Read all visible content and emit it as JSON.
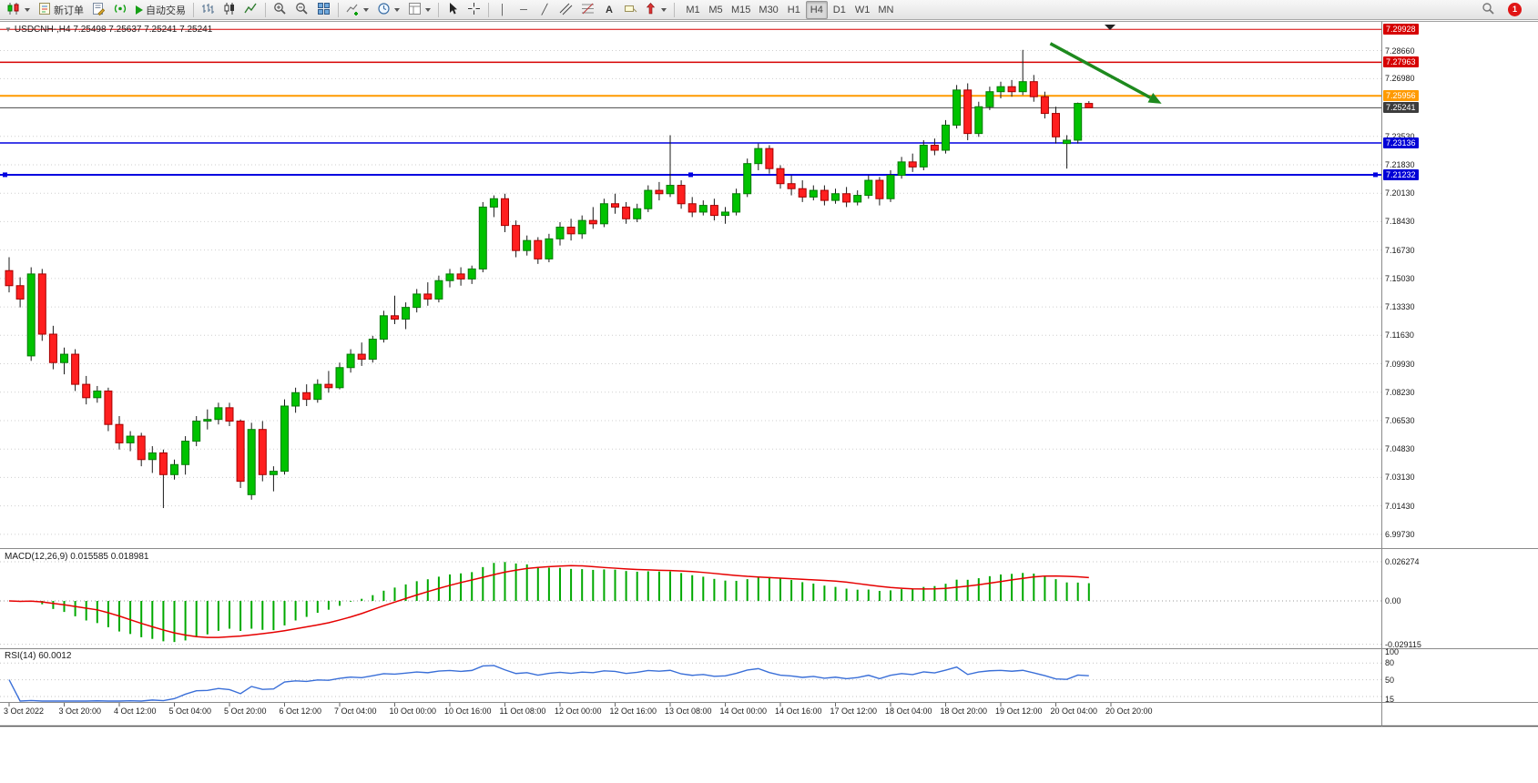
{
  "toolbar": {
    "new_order": "新订单",
    "autotrading": "自动交易",
    "text_tool": "A",
    "timeframes": [
      "M1",
      "M5",
      "M15",
      "M30",
      "H1",
      "H4",
      "D1",
      "W1",
      "MN"
    ],
    "active_timeframe": "H4",
    "notification_count": "1"
  },
  "icons": {
    "one_click_toggle": "▼",
    "vline": "│",
    "hline": "─",
    "trendline": "╱"
  },
  "chart": {
    "title": "USDCNH-,H4  7.25498 7.25637 7.25241 7.25241"
  },
  "chart_data": {
    "type": "candlestick",
    "symbol": "USDCNH-",
    "timeframe": "H4",
    "last_ohlc": {
      "open": "7.25498",
      "high": "7.25637",
      "low": "7.25241",
      "close": "7.25241"
    },
    "price_range": {
      "axis_top": 7.3005,
      "axis_bottom": 6.9945
    },
    "colors": {
      "up": "#00c200",
      "up_border": "#067a06",
      "down": "#ff1f1f",
      "down_border": "#a50000",
      "wick": "#1a1a1a",
      "grid": "#cfcfcf",
      "macd_hist": "#00a900",
      "macd_signal": "#e60000",
      "rsi_line": "#3a6fd8"
    },
    "price_axis": [
      {
        "text": "7.29928",
        "v": 7.29928,
        "bg": "#d60000"
      },
      {
        "text": "7.28660",
        "v": 7.2866
      },
      {
        "text": "7.27963",
        "v": 7.27963,
        "bg": "#d60000"
      },
      {
        "text": "7.26980",
        "v": 7.2698
      },
      {
        "text": "7.25956",
        "v": 7.25956,
        "bg": "#ff9a00"
      },
      {
        "text": "7.25241",
        "v": 7.25241,
        "bg": "#3c3c3c"
      },
      {
        "text": "7.23530",
        "v": 7.2353
      },
      {
        "text": "7.23136",
        "v": 7.23136,
        "bg": "#0000d6"
      },
      {
        "text": "7.21830",
        "v": 7.2183
      },
      {
        "text": "7.21232",
        "v": 7.21232,
        "bg": "#0000d6"
      },
      {
        "text": "7.20130",
        "v": 7.2013
      },
      {
        "text": "7.18430",
        "v": 7.1843
      },
      {
        "text": "7.16730",
        "v": 7.1673
      },
      {
        "text": "7.15030",
        "v": 7.1503
      },
      {
        "text": "7.13330",
        "v": 7.1333
      },
      {
        "text": "7.11630",
        "v": 7.1163
      },
      {
        "text": "7.09930",
        "v": 7.0993
      },
      {
        "text": "7.08230",
        "v": 7.0823
      },
      {
        "text": "7.06530",
        "v": 7.0653
      },
      {
        "text": "7.04830",
        "v": 7.0483
      },
      {
        "text": "7.03130",
        "v": 7.0313
      },
      {
        "text": "7.01430",
        "v": 7.0143
      },
      {
        "text": "6.99730",
        "v": 6.9973
      }
    ],
    "hlines": [
      {
        "price": 7.29928,
        "color": "#d60000",
        "w": 1
      },
      {
        "price": 7.27963,
        "color": "#d60000",
        "w": 1.5
      },
      {
        "price": 7.25956,
        "color": "#ff9a00",
        "w": 2
      },
      {
        "price": 7.25241,
        "color": "#4a4a4a",
        "w": 1
      },
      {
        "price": 7.23136,
        "color": "#0000e0",
        "w": 1.5
      },
      {
        "price": 7.21232,
        "color": "#0000e0",
        "w": 2,
        "selected": true
      }
    ],
    "trend_arrow": {
      "i1": 94.5,
      "p1": 7.2908,
      "i2": 104.6,
      "p2": 7.2548,
      "color": "#1e8a1e"
    },
    "candles": [
      [
        7.155,
        7.163,
        7.142,
        7.146
      ],
      [
        7.146,
        7.151,
        7.133,
        7.138
      ],
      [
        7.104,
        7.157,
        7.101,
        7.153
      ],
      [
        7.153,
        7.156,
        7.113,
        7.117
      ],
      [
        7.117,
        7.122,
        7.096,
        7.1
      ],
      [
        7.1,
        7.109,
        7.093,
        7.105
      ],
      [
        7.105,
        7.108,
        7.083,
        7.087
      ],
      [
        7.087,
        7.092,
        7.075,
        7.079
      ],
      [
        7.079,
        7.086,
        7.076,
        7.083
      ],
      [
        7.083,
        7.085,
        7.059,
        7.063
      ],
      [
        7.063,
        7.068,
        7.048,
        7.052
      ],
      [
        7.052,
        7.059,
        7.047,
        7.056
      ],
      [
        7.056,
        7.058,
        7.038,
        7.042
      ],
      [
        7.042,
        7.05,
        7.034,
        7.046
      ],
      [
        7.046,
        7.048,
        7.013,
        7.033
      ],
      [
        7.033,
        7.042,
        7.03,
        7.039
      ],
      [
        7.039,
        7.056,
        7.033,
        7.053
      ],
      [
        7.053,
        7.068,
        7.05,
        7.065
      ],
      [
        7.065,
        7.072,
        7.06,
        7.066
      ],
      [
        7.066,
        7.076,
        7.063,
        7.073
      ],
      [
        7.073,
        7.076,
        7.062,
        7.065
      ],
      [
        7.065,
        7.066,
        7.025,
        7.029
      ],
      [
        7.021,
        7.064,
        7.018,
        7.06
      ],
      [
        7.06,
        7.065,
        7.029,
        7.033
      ],
      [
        7.033,
        7.038,
        7.023,
        7.035
      ],
      [
        7.035,
        7.078,
        7.033,
        7.074
      ],
      [
        7.074,
        7.085,
        7.07,
        7.082
      ],
      [
        7.082,
        7.087,
        7.074,
        7.078
      ],
      [
        7.078,
        7.09,
        7.076,
        7.087
      ],
      [
        7.087,
        7.095,
        7.082,
        7.085
      ],
      [
        7.085,
        7.1,
        7.084,
        7.097
      ],
      [
        7.097,
        7.108,
        7.094,
        7.105
      ],
      [
        7.105,
        7.112,
        7.098,
        7.102
      ],
      [
        7.102,
        7.116,
        7.1,
        7.114
      ],
      [
        7.114,
        7.131,
        7.112,
        7.128
      ],
      [
        7.128,
        7.14,
        7.123,
        7.126
      ],
      [
        7.126,
        7.136,
        7.12,
        7.133
      ],
      [
        7.133,
        7.144,
        7.13,
        7.141
      ],
      [
        7.141,
        7.148,
        7.134,
        7.138
      ],
      [
        7.138,
        7.152,
        7.136,
        7.149
      ],
      [
        7.149,
        7.156,
        7.145,
        7.153
      ],
      [
        7.153,
        7.157,
        7.146,
        7.15
      ],
      [
        7.15,
        7.158,
        7.147,
        7.156
      ],
      [
        7.156,
        7.196,
        7.154,
        7.193
      ],
      [
        7.193,
        7.2,
        7.187,
        7.198
      ],
      [
        7.198,
        7.201,
        7.178,
        7.182
      ],
      [
        7.182,
        7.185,
        7.163,
        7.167
      ],
      [
        7.167,
        7.176,
        7.164,
        7.173
      ],
      [
        7.173,
        7.175,
        7.159,
        7.162
      ],
      [
        7.162,
        7.177,
        7.16,
        7.174
      ],
      [
        7.174,
        7.184,
        7.17,
        7.181
      ],
      [
        7.181,
        7.186,
        7.173,
        7.177
      ],
      [
        7.177,
        7.188,
        7.174,
        7.185
      ],
      [
        7.185,
        7.193,
        7.18,
        7.183
      ],
      [
        7.183,
        7.198,
        7.181,
        7.195
      ],
      [
        7.195,
        7.201,
        7.189,
        7.193
      ],
      [
        7.193,
        7.196,
        7.183,
        7.186
      ],
      [
        7.186,
        7.195,
        7.184,
        7.192
      ],
      [
        7.192,
        7.206,
        7.19,
        7.203
      ],
      [
        7.203,
        7.208,
        7.197,
        7.201
      ],
      [
        7.201,
        7.236,
        7.199,
        7.206
      ],
      [
        7.206,
        7.209,
        7.192,
        7.195
      ],
      [
        7.195,
        7.199,
        7.187,
        7.19
      ],
      [
        7.19,
        7.197,
        7.188,
        7.194
      ],
      [
        7.194,
        7.198,
        7.185,
        7.188
      ],
      [
        7.188,
        7.193,
        7.183,
        7.19
      ],
      [
        7.19,
        7.204,
        7.188,
        7.201
      ],
      [
        7.201,
        7.222,
        7.199,
        7.219
      ],
      [
        7.219,
        7.231,
        7.215,
        7.228
      ],
      [
        7.228,
        7.23,
        7.213,
        7.216
      ],
      [
        7.216,
        7.218,
        7.204,
        7.207
      ],
      [
        7.207,
        7.212,
        7.2,
        7.204
      ],
      [
        7.204,
        7.209,
        7.196,
        7.199
      ],
      [
        7.199,
        7.206,
        7.197,
        7.203
      ],
      [
        7.203,
        7.206,
        7.194,
        7.197
      ],
      [
        7.197,
        7.204,
        7.195,
        7.201
      ],
      [
        7.201,
        7.205,
        7.193,
        7.196
      ],
      [
        7.196,
        7.203,
        7.194,
        7.2
      ],
      [
        7.2,
        7.212,
        7.198,
        7.209
      ],
      [
        7.209,
        7.211,
        7.194,
        7.198
      ],
      [
        7.198,
        7.215,
        7.196,
        7.212
      ],
      [
        7.212,
        7.223,
        7.21,
        7.22
      ],
      [
        7.22,
        7.225,
        7.214,
        7.217
      ],
      [
        7.217,
        7.233,
        7.215,
        7.23
      ],
      [
        7.23,
        7.234,
        7.224,
        7.227
      ],
      [
        7.227,
        7.245,
        7.225,
        7.242
      ],
      [
        7.242,
        7.266,
        7.24,
        7.263
      ],
      [
        7.263,
        7.267,
        7.233,
        7.237
      ],
      [
        7.237,
        7.256,
        7.235,
        7.253
      ],
      [
        7.253,
        7.265,
        7.251,
        7.262
      ],
      [
        7.262,
        7.268,
        7.258,
        7.265
      ],
      [
        7.265,
        7.269,
        7.259,
        7.262
      ],
      [
        7.262,
        7.287,
        7.26,
        7.268
      ],
      [
        7.268,
        7.272,
        7.256,
        7.259
      ],
      [
        7.259,
        7.262,
        7.246,
        7.249
      ],
      [
        7.249,
        7.253,
        7.231,
        7.235
      ],
      [
        7.231,
        7.236,
        7.216,
        7.233
      ],
      [
        7.233,
        7.2555,
        7.231,
        7.255
      ],
      [
        7.25498,
        7.25637,
        7.25241,
        7.25241
      ]
    ],
    "time_axis": [
      {
        "text": "3 Oct 2022",
        "i": 0
      },
      {
        "text": "3 Oct 20:00",
        "i": 5
      },
      {
        "text": "4 Oct 12:00",
        "i": 10
      },
      {
        "text": "5 Oct 04:00",
        "i": 15
      },
      {
        "text": "5 Oct 20:00",
        "i": 20
      },
      {
        "text": "6 Oct 12:00",
        "i": 25
      },
      {
        "text": "7 Oct 04:00",
        "i": 30
      },
      {
        "text": "10 Oct 00:00",
        "i": 35
      },
      {
        "text": "10 Oct 16:00",
        "i": 40
      },
      {
        "text": "11 Oct 08:00",
        "i": 45
      },
      {
        "text": "12 Oct 00:00",
        "i": 50
      },
      {
        "text": "12 Oct 16:00",
        "i": 55
      },
      {
        "text": "13 Oct 08:00",
        "i": 60
      },
      {
        "text": "14 Oct 00:00",
        "i": 65
      },
      {
        "text": "14 Oct 16:00",
        "i": 70
      },
      {
        "text": "17 Oct 12:00",
        "i": 75
      },
      {
        "text": "18 Oct 04:00",
        "i": 80
      },
      {
        "text": "18 Oct 20:00",
        "i": 85
      },
      {
        "text": "19 Oct 12:00",
        "i": 90
      },
      {
        "text": "20 Oct 04:00",
        "i": 95
      },
      {
        "text": "20 Oct 20:00",
        "i": 100
      }
    ],
    "indicators": {
      "macd": {
        "name": "MACD(12,26,9)",
        "value_main": "0.015585",
        "value_signal": "0.018981",
        "params": [
          12,
          26,
          9
        ],
        "axis": [
          {
            "text": "0.026274",
            "v": 0.026274
          },
          {
            "text": "0.00",
            "v": 0
          },
          {
            "text": "-0.029115",
            "v": -0.029115
          }
        ]
      },
      "rsi": {
        "name": "RSI(14)",
        "value": "60.0012",
        "period": 14,
        "axis": [
          {
            "text": "100",
            "v": 100
          },
          {
            "text": "80",
            "v": 80
          },
          {
            "text": "50",
            "v": 50
          },
          {
            "text": "15",
            "v": 15
          }
        ],
        "levels": [
          80,
          50,
          20
        ]
      }
    }
  }
}
